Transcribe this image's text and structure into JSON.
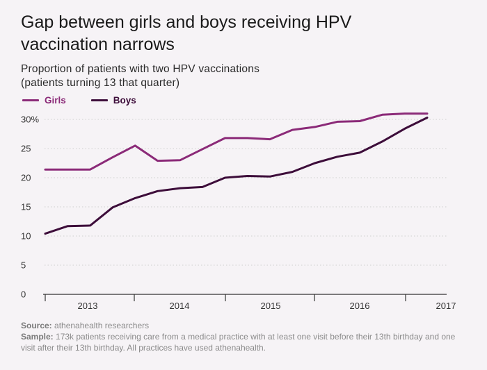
{
  "title_line1": "Gap between girls and boys receiving HPV",
  "title_line2": "vaccination narrows",
  "subtitle_line1": "Proportion of patients with two HPV vaccinations",
  "subtitle_line2": "(patients turning 13 that quarter)",
  "colors": {
    "girls": "#8b2a78",
    "boys": "#3d0d3a",
    "grid": "#cfcfcf",
    "axis": "#333333"
  },
  "footer": {
    "source_label": "Source:",
    "source_text": "athenahealth researchers",
    "sample_label": "Sample:",
    "sample_text": "173k patients receiving care from a medical practice with at least one visit before their 13th birthday and one visit after their 13th birthday. All practices have used athenahealth."
  },
  "chart_data": {
    "type": "line",
    "title": "Gap between girls and boys receiving HPV vaccination narrows",
    "subtitle": "Proportion of patients with two HPV vaccinations (patients turning 13 that quarter)",
    "ylim": [
      0,
      30
    ],
    "yticks": [
      "0",
      "5",
      "10",
      "15",
      "20",
      "25",
      "30%"
    ],
    "year_labels": [
      "2013",
      "2014",
      "2015",
      "2016",
      "2017"
    ],
    "legend_position": "top-left",
    "grid": "horizontal dotted",
    "series": [
      {
        "name": "Girls",
        "color": "#8b2a78",
        "values": [
          21.4,
          21.4,
          21.4,
          23.5,
          25.5,
          22.9,
          23.0,
          24.9,
          26.8,
          26.8,
          26.6,
          28.2,
          28.7,
          29.6,
          29.7,
          30.8,
          31.0,
          31.0
        ]
      },
      {
        "name": "Boys",
        "color": "#3d0d3a",
        "values": [
          10.4,
          11.7,
          11.8,
          14.9,
          16.5,
          17.7,
          18.2,
          18.4,
          20.0,
          20.3,
          20.2,
          21.0,
          22.5,
          23.6,
          24.3,
          26.2,
          28.4,
          30.3
        ]
      }
    ]
  }
}
